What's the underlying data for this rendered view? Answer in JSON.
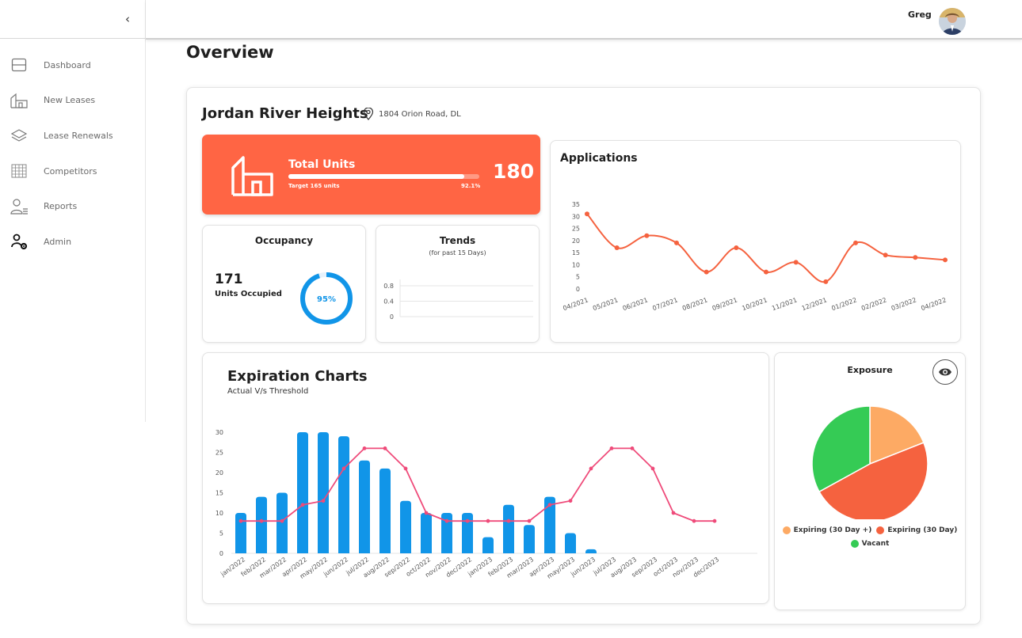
{
  "sidebar": {
    "collapse_icon": "chevron-left-icon",
    "items": [
      {
        "label": "Dashboard",
        "icon": "dashboard-icon"
      },
      {
        "label": "New Leases",
        "icon": "building-icon"
      },
      {
        "label": "Lease Renewals",
        "icon": "layers-icon"
      },
      {
        "label": "Competitors",
        "icon": "grid-icon"
      },
      {
        "label": "Reports",
        "icon": "user-list-icon"
      },
      {
        "label": "Admin",
        "icon": "user-gear-icon"
      }
    ]
  },
  "header": {
    "user_name": "Greg"
  },
  "page": {
    "title": "Overview"
  },
  "property": {
    "name": "Jordan River Heights",
    "address": "1804 Orion Road, DL"
  },
  "total_units": {
    "title": "Total Units",
    "count": "180",
    "target": "Target 165 units",
    "percent": "92.1%",
    "progress": 0.921
  },
  "occupancy": {
    "title": "Occupancy",
    "occupied": "171",
    "label": "Units Occupied",
    "percent": "95%",
    "progress": 0.95
  },
  "trends": {
    "title": "Trends",
    "subtitle": "(for past 15 Days)"
  },
  "applications": {
    "title": "Applications"
  },
  "expiration": {
    "title": "Expiration Charts",
    "subtitle": "Actual V/s Threshold"
  },
  "exposure": {
    "title": "Exposure"
  },
  "colors": {
    "accent": "#ff6544",
    "bar_blue": "#1195e8",
    "pink": "#ef4b7a",
    "green": "#35cb55",
    "orange_light": "#fdaa64",
    "red_orange": "#f5623f"
  },
  "chart_data": [
    {
      "type": "line",
      "x": [
        "04/2021",
        "05/2021",
        "06/2021",
        "07/2021",
        "08/2021",
        "09/2021",
        "10/2021",
        "11/2021",
        "12/2021",
        "01/2022",
        "02/2022",
        "03/2022",
        "04/2022"
      ],
      "values": [
        31,
        17,
        22,
        19,
        7,
        17,
        7,
        11,
        3,
        19,
        14,
        13,
        12
      ],
      "ylim": [
        0,
        35
      ],
      "yticks": [
        "0",
        "5",
        "10",
        "15",
        "20",
        "25",
        "30",
        "35"
      ],
      "color": "#f5623f"
    },
    {
      "type": "line",
      "values": [],
      "ylim": [
        0,
        0.8
      ],
      "yticks": [
        "0",
        "0.4",
        "0.8"
      ]
    },
    {
      "type": "bar",
      "categories": [
        "jan/2022",
        "feb/2022",
        "mar/2022",
        "apr/2022",
        "may/2022",
        "jun/2022",
        "jul/2022",
        "aug/2022",
        "sep/2022",
        "oct/2022",
        "nov/2022",
        "dec/2022",
        "jan/2023",
        "feb/2023",
        "mar/2023",
        "apr/2023",
        "may/2023",
        "jun/2023",
        "jul/2023",
        "aug/2023",
        "sep/2023",
        "oct/2023",
        "nov/2023",
        "dec/2023"
      ],
      "series": [
        {
          "type": "bar",
          "values": [
            10,
            14,
            15,
            30,
            30,
            29,
            23,
            21,
            13,
            10,
            10,
            10,
            4,
            12,
            7,
            14,
            5,
            1,
            0,
            0,
            0,
            0,
            0,
            0
          ],
          "color": "#1195e8"
        },
        {
          "type": "line",
          "values": [
            8,
            8,
            8,
            12,
            13,
            21,
            26,
            26,
            21,
            10,
            8,
            8,
            8,
            8,
            8,
            12,
            13,
            21,
            26,
            26,
            21,
            10,
            8,
            8
          ],
          "color": "#ef4b7a"
        }
      ],
      "ylim": [
        0,
        30
      ],
      "yticks": [
        "0",
        "5",
        "10",
        "15",
        "20",
        "25",
        "30"
      ]
    },
    {
      "type": "pie",
      "slices": [
        {
          "label": "Expiring (30 Day +)",
          "value": 19,
          "color": "#fdaa64"
        },
        {
          "label": "Expiring (30 Day)",
          "value": 48,
          "color": "#f5623f"
        },
        {
          "label": "Vacant",
          "value": 33,
          "color": "#35cb55"
        }
      ]
    }
  ]
}
